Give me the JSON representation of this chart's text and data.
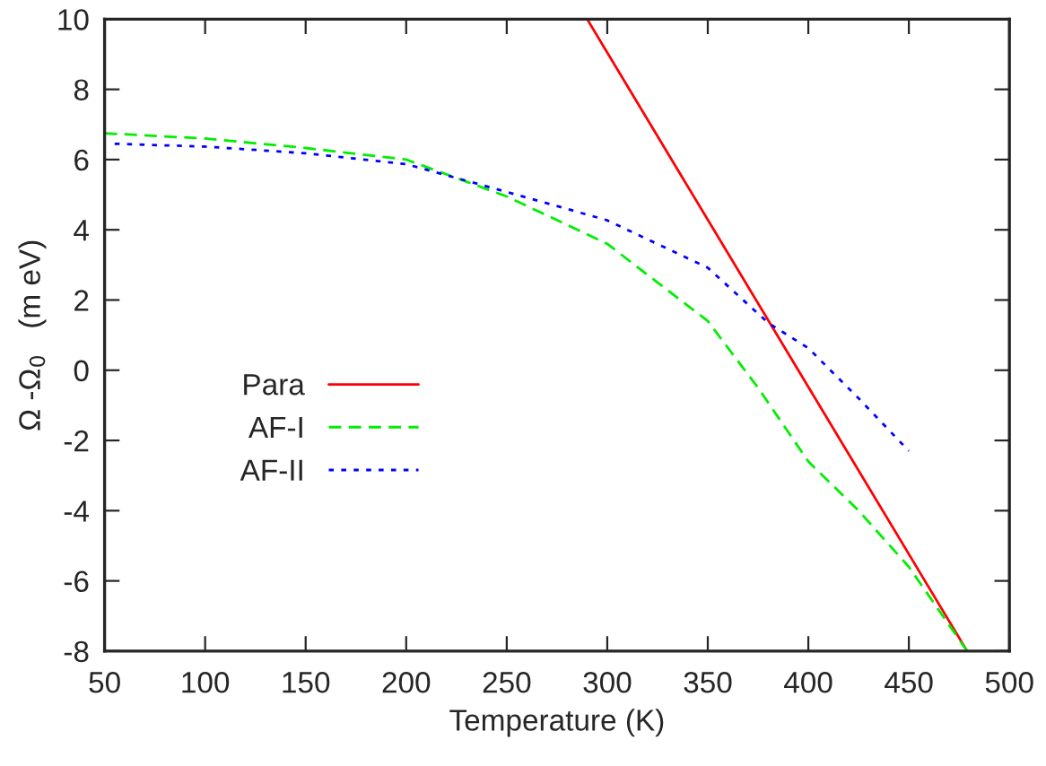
{
  "chart_data": {
    "type": "line",
    "xlabel": "Temperature (K)",
    "ylabel": "Ω -Ω$_{0}$   (m eV)",
    "xlim": [
      50,
      500
    ],
    "xticks": [
      50,
      100,
      150,
      200,
      250,
      300,
      350,
      400,
      450,
      500
    ],
    "ylim": [
      -8,
      10
    ],
    "yticks": [
      -8,
      -6,
      -4,
      -2,
      0,
      2,
      4,
      6,
      8,
      10
    ],
    "grid": false,
    "legend": "left",
    "marker": "none",
    "series": [
      {
        "name": "Para",
        "color": "#ff0000",
        "line_style": "solid",
        "x": [
          290,
          479
        ],
        "values": [
          10,
          -8
        ]
      },
      {
        "name": "AF-I",
        "color": "#00ee00",
        "line_style": "dashed",
        "x": [
          50,
          100,
          150,
          200,
          250,
          300,
          350,
          375,
          400,
          425,
          450,
          479
        ],
        "values": [
          6.75,
          6.6,
          6.33,
          6.0,
          4.95,
          3.6,
          1.4,
          -0.5,
          -2.6,
          -4.0,
          -5.6,
          -8
        ]
      },
      {
        "name": "AF-II",
        "color": "#0000ff",
        "line_style": "dotted",
        "x": [
          55,
          100,
          150,
          200,
          250,
          300,
          350,
          380,
          400,
          425,
          450
        ],
        "values": [
          6.45,
          6.37,
          6.18,
          5.87,
          5.08,
          4.27,
          2.92,
          1.35,
          0.63,
          -0.8,
          -2.3
        ]
      }
    ]
  }
}
